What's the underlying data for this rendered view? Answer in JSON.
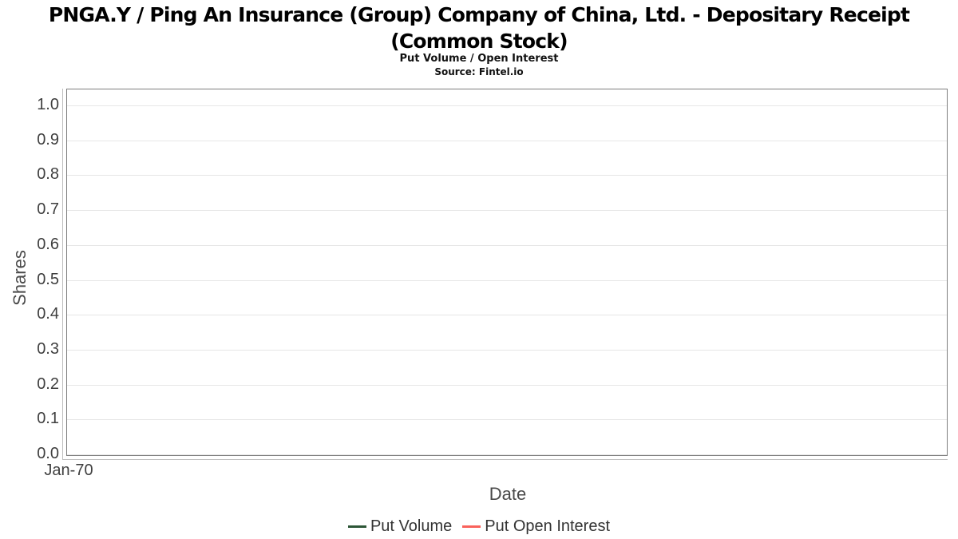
{
  "header": {
    "title_line1": "PNGA.Y / Ping An Insurance (Group) Company of China, Ltd. - Depositary Receipt",
    "title_line2": "(Common Stock)",
    "subtitle": "Put Volume / Open Interest",
    "source": "Source: Fintel.io"
  },
  "chart_data": {
    "type": "line",
    "title": "PNGA.Y / Ping An Insurance (Group) Company of China, Ltd. - Depositary Receipt (Common Stock)",
    "subtitle": "Put Volume / Open Interest",
    "source": "Source: Fintel.io",
    "xlabel": "Date",
    "ylabel": "Shares",
    "x_ticks": [
      "Jan-70"
    ],
    "y_ticks": [
      "0.0",
      "0.1",
      "0.2",
      "0.3",
      "0.4",
      "0.5",
      "0.6",
      "0.7",
      "0.8",
      "0.9",
      "1.0"
    ],
    "ylim": [
      0.0,
      1.05
    ],
    "grid": true,
    "legend_position": "bottom",
    "series": [
      {
        "name": "Put Volume",
        "color": "#2d5637",
        "x": [],
        "values": []
      },
      {
        "name": "Put Open Interest",
        "color": "#f9625b",
        "x": [],
        "values": []
      }
    ],
    "colors": {
      "plot_border": "#7e7e7e",
      "gridline": "#e6e6e6",
      "axis_line": "#bdbdbd",
      "tick_text": "#3f3f3f",
      "title_text": "#000000"
    },
    "note_empty": "no data points plotted"
  }
}
